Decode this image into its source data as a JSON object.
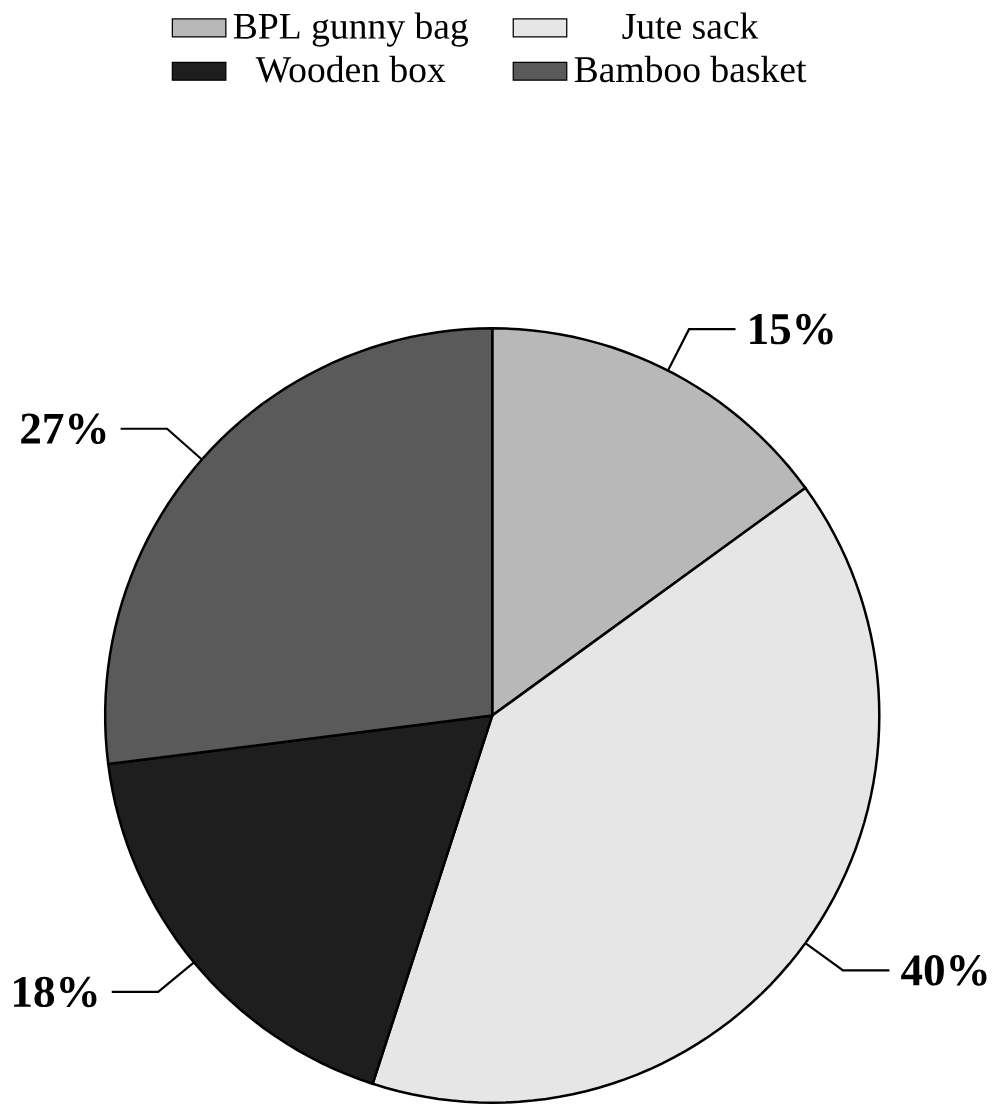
{
  "chart_data": {
    "type": "pie",
    "categories": [
      "BPL gunny bag",
      "Jute sack",
      "Wooden box",
      "Bamboo basket"
    ],
    "values": [
      15,
      40,
      18,
      27
    ],
    "colors": [
      "#b8b8b8",
      "#e6e6e6",
      "#1e1e1e",
      "#5a5a5a"
    ],
    "value_labels": [
      "15%",
      "40%",
      "18%",
      "27%"
    ],
    "legend": "top"
  }
}
